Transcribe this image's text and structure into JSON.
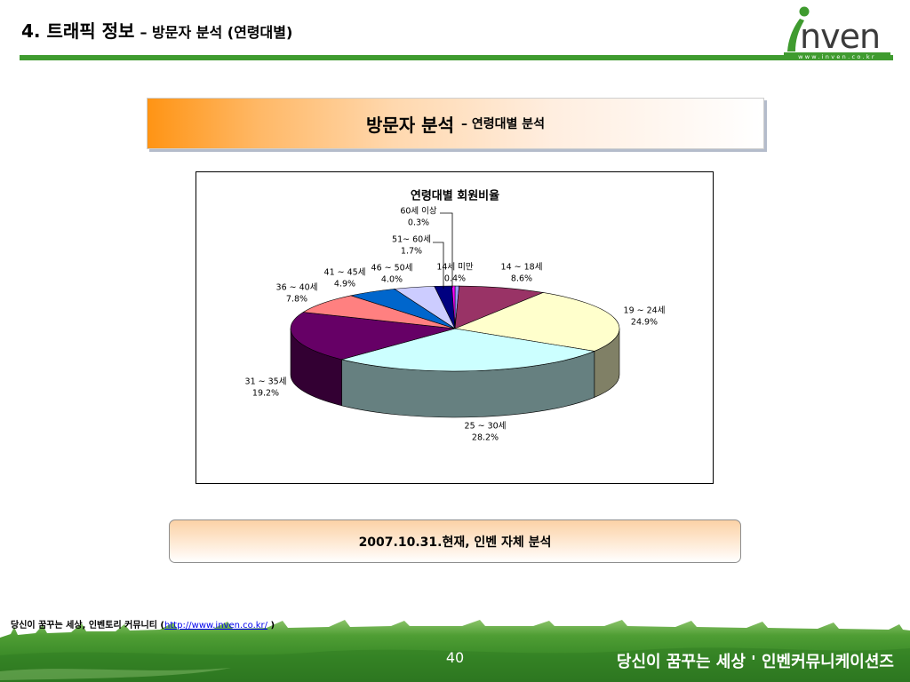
{
  "header": {
    "title_main": "4. 트래픽 정보",
    "title_sub": "– 방문자 분석 (연령대별)",
    "rule_color": "#3f9b2f"
  },
  "logo": {
    "wordmark_i": "i",
    "wordmark_rest": "nven",
    "url_text": "www.inven.co.kr",
    "brand_color": "#3f9b2f"
  },
  "banner": {
    "main": "방문자 분석",
    "sub": "– 연령대별 분석",
    "accent_color": "#ff9414"
  },
  "chart_data": {
    "type": "pie",
    "3d": true,
    "title": "연령대별 회원비율",
    "categories": [
      "14세 미만",
      "14 ~ 18세",
      "19 ~ 24세",
      "25 ~ 30세",
      "31 ~ 35세",
      "36 ~ 40세",
      "41 ~ 45세",
      "46 ~ 50세",
      "51~ 60세",
      "60세 이상"
    ],
    "values": [
      0.4,
      8.6,
      24.9,
      28.2,
      19.2,
      7.8,
      4.9,
      4.0,
      1.7,
      0.3
    ],
    "unit": "%",
    "colors": [
      "#9999FF",
      "#993366",
      "#FFFFCC",
      "#CCFFFF",
      "#660066",
      "#FF8080",
      "#0066CC",
      "#CCCCFF",
      "#000080",
      "#FF00FF"
    ]
  },
  "note": {
    "text": "2007.10.31.현재, 인벤 자체 분석"
  },
  "footer": {
    "slogan": "당신이 꿈꾸는 세상, 인벤토리 커뮤니티",
    "paren_open": "(",
    "link": "http://www.inven.co.kr/",
    "paren_close": ")",
    "page_number": "40",
    "brand_line": "당신이 꿈꾸는 세상 ' 인벤커뮤니케이션즈",
    "grass_color": "#3a8a28"
  }
}
